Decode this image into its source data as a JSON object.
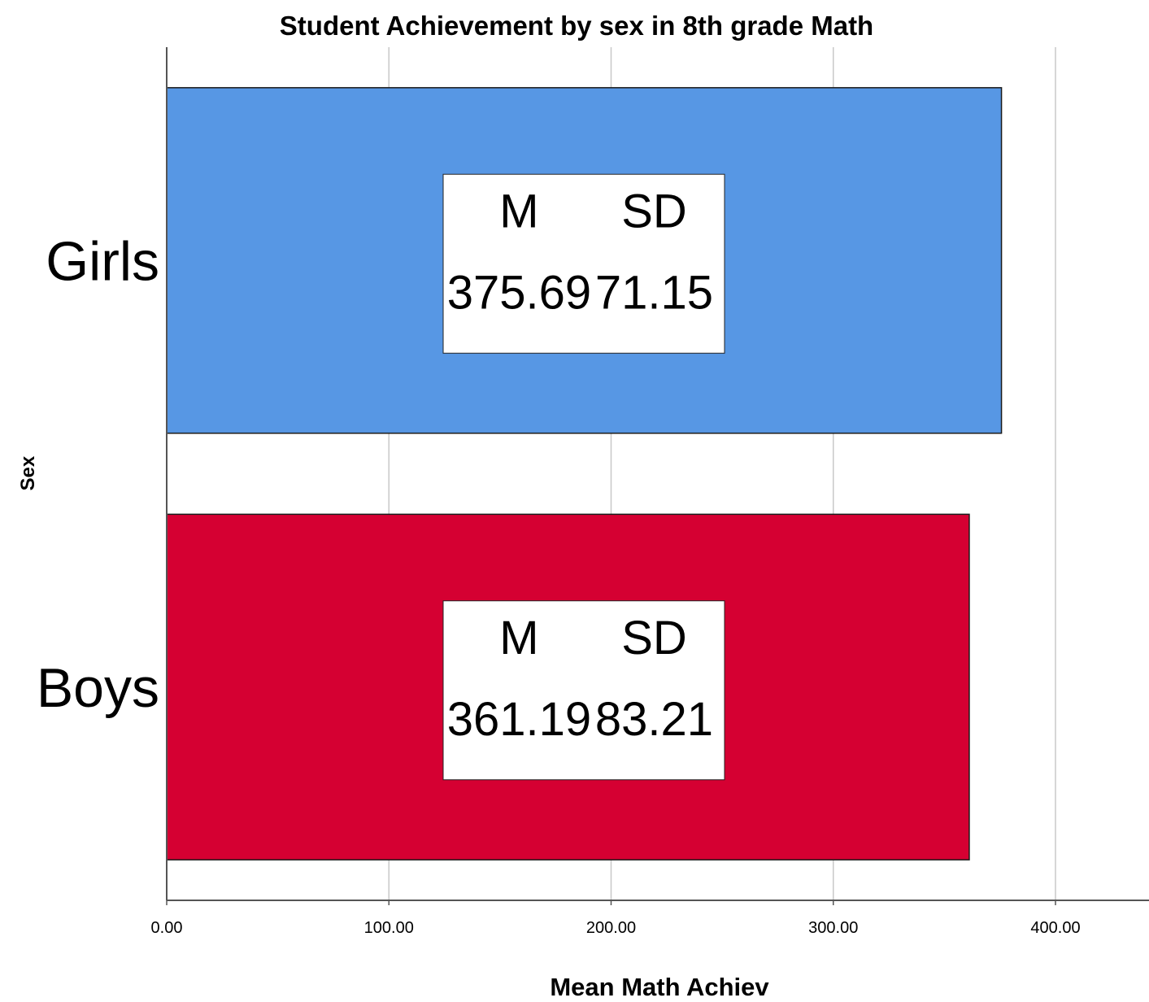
{
  "chart_data": {
    "type": "bar",
    "orientation": "horizontal",
    "title": "Student Achievement by sex in 8th grade Math",
    "xlabel": "Mean Math Achiev",
    "ylabel": "Sex",
    "categories": [
      "Girls",
      "Boys"
    ],
    "values": [
      375.69,
      361.19
    ],
    "xlim": [
      0,
      400
    ],
    "xticks": [
      "0.00",
      "100.00",
      "200.00",
      "300.00",
      "400.00"
    ],
    "grid": true,
    "colors": [
      "#5797e4",
      "#d50032"
    ],
    "annotations": [
      {
        "header_m": "M",
        "header_sd": "SD",
        "m": "375.69",
        "sd": "71.15"
      },
      {
        "header_m": "M",
        "header_sd": "SD",
        "m": "361.19",
        "sd": "83.21"
      }
    ]
  }
}
